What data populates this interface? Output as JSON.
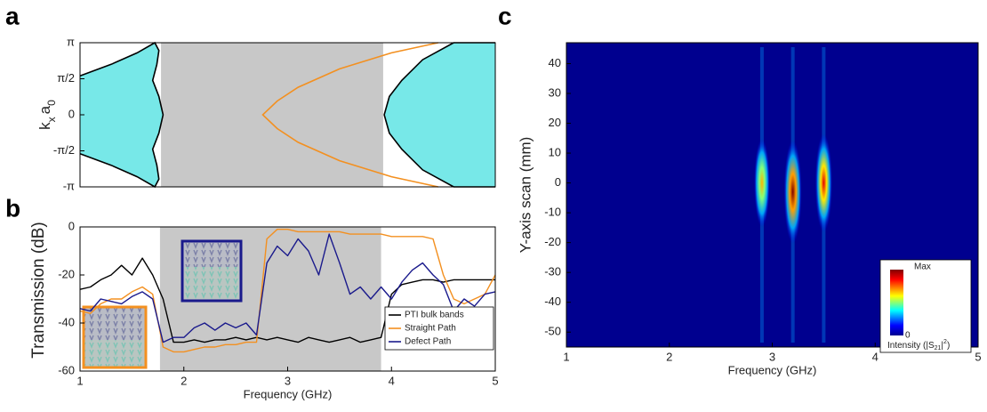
{
  "chart_data": [
    {
      "type": "band",
      "panel_label": "a",
      "ylabel_parts": [
        "k",
        "x",
        "a",
        "0"
      ],
      "xlim": [
        1,
        5
      ],
      "ylim": [
        -3.1416,
        3.1416
      ],
      "yticks": [
        {
          "value": 3.1416,
          "label": "π"
        },
        {
          "value": 1.5708,
          "label": "π/2"
        },
        0,
        {
          "value": -1.5708,
          "label": "-π/2"
        },
        {
          "value": -3.1416,
          "label": "-π"
        }
      ],
      "shaded_band": [
        1.78,
        3.92
      ],
      "shade_color": "#c8c8c8",
      "series": [
        {
          "color": "#000000",
          "fill": "#77e8e8",
          "x": [
            1.0,
            1.3,
            1.55,
            1.72,
            1.76,
            1.74,
            1.7,
            1.76,
            1.8,
            1.76,
            1.7,
            1.74,
            1.76,
            1.72,
            1.55,
            1.3,
            1.0
          ],
          "values": [
            1.7,
            2.2,
            2.7,
            3.1416,
            2.8,
            2.2,
            1.5,
            0.8,
            0,
            -0.8,
            -1.5,
            -2.2,
            -2.8,
            -3.1416,
            -2.7,
            -2.2,
            -1.7
          ]
        },
        {
          "color": "#000000",
          "fill": "#77e8e8",
          "x": [
            5.0,
            4.6,
            4.3,
            4.1,
            3.98,
            3.93,
            3.98,
            4.1,
            4.3,
            4.6,
            5.0
          ],
          "values": [
            3.1416,
            3.1416,
            2.4,
            1.5,
            0.8,
            0,
            -0.8,
            -1.5,
            -2.4,
            -3.1416,
            -3.1416
          ]
        },
        {
          "color": "#f39020",
          "fill": "none",
          "x": [
            4.45,
            4.0,
            3.5,
            3.1,
            2.9,
            2.76,
            2.9,
            3.1,
            3.5,
            4.0,
            4.45
          ],
          "values": [
            3.1416,
            2.7,
            2.0,
            1.2,
            0.6,
            0,
            -0.6,
            -1.2,
            -2.0,
            -2.7,
            -3.1416
          ]
        }
      ]
    },
    {
      "type": "line",
      "panel_label": "b",
      "ylabel": "Transmission (dB)",
      "xlabel": "Frequency (GHz)",
      "xlim": [
        1,
        5
      ],
      "xticks": [
        1,
        2,
        3,
        4,
        5
      ],
      "ylim": [
        -60,
        0
      ],
      "yticks": [
        0,
        -20,
        -40,
        -60
      ],
      "shaded_band": [
        1.77,
        3.9
      ],
      "shade_color": "#c8c8c8",
      "x": [
        1.0,
        1.1,
        1.2,
        1.3,
        1.4,
        1.5,
        1.6,
        1.7,
        1.8,
        1.9,
        2.0,
        2.1,
        2.2,
        2.3,
        2.4,
        2.5,
        2.6,
        2.7,
        2.8,
        2.9,
        3.0,
        3.1,
        3.2,
        3.3,
        3.4,
        3.5,
        3.6,
        3.7,
        3.8,
        3.9,
        4.0,
        4.1,
        4.2,
        4.3,
        4.4,
        4.5,
        4.6,
        4.7,
        4.8,
        4.9,
        5.0
      ],
      "series": [
        {
          "name": "PTI bulk bands",
          "color": "#000000",
          "values": [
            -26,
            -25,
            -22,
            -20,
            -16,
            -20,
            -13,
            -20,
            -30,
            -48,
            -48,
            -47,
            -48,
            -47,
            -47,
            -46,
            -47,
            -46,
            -47,
            -46,
            -47,
            -48,
            -46,
            -47,
            -48,
            -47,
            -46,
            -48,
            -47,
            -46,
            -28,
            -24,
            -23,
            -22,
            -22,
            -23,
            -22,
            -22,
            -22,
            -22,
            -22
          ]
        },
        {
          "name": "Straight Path",
          "color": "#f39020",
          "values": [
            -35,
            -36,
            -32,
            -30,
            -30,
            -27,
            -25,
            -28,
            -50,
            -52,
            -52,
            -51,
            -50,
            -50,
            -49,
            -49,
            -48,
            -48,
            -5,
            -1,
            -1,
            -2,
            -2,
            -2,
            -2,
            -2,
            -3,
            -3,
            -3,
            -3,
            -4,
            -4,
            -4,
            -4,
            -5,
            -20,
            -30,
            -32,
            -30,
            -28,
            -20
          ]
        },
        {
          "name": "Defect Path",
          "color": "#1a1a8c",
          "values": [
            -34,
            -35,
            -30,
            -31,
            -32,
            -29,
            -27,
            -30,
            -48,
            -46,
            -46,
            -42,
            -40,
            -43,
            -40,
            -42,
            -40,
            -45,
            -15,
            -8,
            -12,
            -5,
            -10,
            -20,
            -3,
            -15,
            -28,
            -25,
            -30,
            -25,
            -30,
            -23,
            -18,
            -15,
            -20,
            -24,
            -35,
            -30,
            -33,
            -28,
            -27
          ]
        }
      ]
    },
    {
      "type": "heatmap",
      "panel_label": "c",
      "ylabel": "Y-axis scan (mm)",
      "xlabel": "Frequency (GHz)",
      "xlim": [
        1,
        5
      ],
      "xticks": [
        1,
        2,
        3,
        4,
        5
      ],
      "ylim": [
        -55,
        47
      ],
      "yticks": [
        40,
        30,
        20,
        10,
        0,
        -10,
        -20,
        -30,
        -40,
        -50
      ],
      "background": "#00008f",
      "peaks": {
        "x": [
          2.9,
          3.2,
          3.5
        ],
        "values": [
          0,
          -3,
          0
        ],
        "intensity": [
          0.7,
          1.0,
          0.9
        ]
      },
      "colorbar": {
        "max_label": "Max",
        "min_label": "0",
        "label_parts": [
          "Intensity (|S",
          "21",
          "|",
          "2",
          ")"
        ]
      }
    }
  ]
}
